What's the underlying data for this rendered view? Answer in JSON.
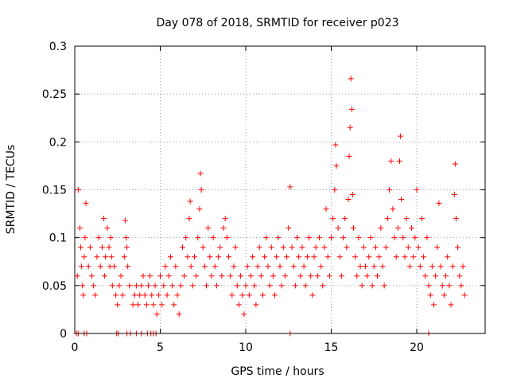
{
  "chart_data": {
    "type": "scatter",
    "title": "Day 078 of 2018, SRMTID for receiver p023",
    "xlabel": "GPS time / hours",
    "ylabel": "SRMTID / TECUs",
    "xlim": [
      0,
      24
    ],
    "ylim": [
      0,
      0.3
    ],
    "xticks": [
      0,
      5,
      10,
      15,
      20
    ],
    "yticks": [
      0,
      0.05,
      0.1,
      0.15,
      0.2,
      0.25,
      0.3
    ],
    "xtick_labels": [
      "0",
      "5",
      "10",
      "15",
      "20"
    ],
    "ytick_labels": [
      "0",
      "0.05",
      "0.1",
      "0.15",
      "0.2",
      "0.25",
      "0.3"
    ],
    "grid": true,
    "marker": "+",
    "series_color": "#ff0000",
    "series": [
      {
        "name": "SRMTID",
        "points": [
          [
            0.15,
            0.06
          ],
          [
            0.2,
            0.15
          ],
          [
            0.3,
            0.11
          ],
          [
            0.35,
            0.09
          ],
          [
            0.4,
            0.07
          ],
          [
            0.45,
            0.05
          ],
          [
            0.5,
            0.04
          ],
          [
            0.55,
            0.08
          ],
          [
            0.6,
            0.1
          ],
          [
            0.65,
            0.136
          ],
          [
            0.8,
            0.07
          ],
          [
            0.9,
            0.09
          ],
          [
            1.0,
            0.06
          ],
          [
            1.1,
            0.05
          ],
          [
            1.2,
            0.04
          ],
          [
            1.3,
            0.08
          ],
          [
            1.4,
            0.1
          ],
          [
            1.5,
            0.07
          ],
          [
            1.6,
            0.09
          ],
          [
            1.7,
            0.12
          ],
          [
            1.75,
            0.06
          ],
          [
            1.8,
            0.08
          ],
          [
            1.9,
            0.11
          ],
          [
            2.0,
            0.09
          ],
          [
            2.05,
            0.07
          ],
          [
            2.1,
            0.1
          ],
          [
            2.15,
            0.08
          ],
          [
            2.2,
            0.05
          ],
          [
            2.3,
            0.07
          ],
          [
            2.4,
            0.04
          ],
          [
            2.5,
            0.03
          ],
          [
            2.6,
            0.05
          ],
          [
            2.7,
            0.06
          ],
          [
            2.8,
            0.04
          ],
          [
            2.9,
            0.08
          ],
          [
            2.95,
            0.118
          ],
          [
            3.0,
            0.1
          ],
          [
            3.05,
            0.09
          ],
          [
            3.1,
            0.07
          ],
          [
            3.2,
            0.05
          ],
          [
            3.4,
            0.03
          ],
          [
            3.5,
            0.04
          ],
          [
            3.6,
            0.05
          ],
          [
            3.7,
            0.03
          ],
          [
            3.8,
            0.04
          ],
          [
            3.9,
            0.05
          ],
          [
            4.0,
            0.06
          ],
          [
            4.1,
            0.04
          ],
          [
            4.2,
            0.03
          ],
          [
            4.3,
            0.05
          ],
          [
            4.4,
            0.06
          ],
          [
            4.5,
            0.04
          ],
          [
            4.6,
            0.03
          ],
          [
            4.7,
            0.05
          ],
          [
            4.8,
            0.02
          ],
          [
            4.9,
            0.04
          ],
          [
            5.0,
            0.06
          ],
          [
            5.1,
            0.03
          ],
          [
            5.2,
            0.05
          ],
          [
            5.3,
            0.07
          ],
          [
            5.4,
            0.04
          ],
          [
            5.5,
            0.06
          ],
          [
            5.6,
            0.08
          ],
          [
            5.7,
            0.05
          ],
          [
            5.8,
            0.03
          ],
          [
            5.9,
            0.07
          ],
          [
            6.0,
            0.04
          ],
          [
            6.1,
            0.02
          ],
          [
            6.2,
            0.05
          ],
          [
            6.3,
            0.09
          ],
          [
            6.4,
            0.06
          ],
          [
            6.5,
            0.1
          ],
          [
            6.6,
            0.08
          ],
          [
            6.7,
            0.12
          ],
          [
            6.75,
            0.138
          ],
          [
            6.8,
            0.07
          ],
          [
            6.9,
            0.05
          ],
          [
            7.0,
            0.08
          ],
          [
            7.1,
            0.06
          ],
          [
            7.2,
            0.1
          ],
          [
            7.3,
            0.13
          ],
          [
            7.35,
            0.167
          ],
          [
            7.4,
            0.15
          ],
          [
            7.5,
            0.09
          ],
          [
            7.6,
            0.07
          ],
          [
            7.7,
            0.05
          ],
          [
            7.8,
            0.11
          ],
          [
            7.9,
            0.08
          ],
          [
            8.0,
            0.06
          ],
          [
            8.1,
            0.1
          ],
          [
            8.2,
            0.07
          ],
          [
            8.3,
            0.05
          ],
          [
            8.4,
            0.08
          ],
          [
            8.5,
            0.09
          ],
          [
            8.6,
            0.06
          ],
          [
            8.7,
            0.11
          ],
          [
            8.8,
            0.12
          ],
          [
            8.9,
            0.1
          ],
          [
            9.0,
            0.08
          ],
          [
            9.1,
            0.06
          ],
          [
            9.2,
            0.04
          ],
          [
            9.3,
            0.07
          ],
          [
            9.4,
            0.09
          ],
          [
            9.5,
            0.05
          ],
          [
            9.6,
            0.03
          ],
          [
            9.7,
            0.06
          ],
          [
            9.8,
            0.04
          ],
          [
            9.9,
            0.02
          ],
          [
            10.0,
            0.05
          ],
          [
            10.1,
            0.07
          ],
          [
            10.2,
            0.04
          ],
          [
            10.3,
            0.06
          ],
          [
            10.4,
            0.08
          ],
          [
            10.5,
            0.05
          ],
          [
            10.6,
            0.03
          ],
          [
            10.7,
            0.07
          ],
          [
            10.8,
            0.09
          ],
          [
            10.9,
            0.06
          ],
          [
            11.0,
            0.04
          ],
          [
            11.1,
            0.08
          ],
          [
            11.2,
            0.1
          ],
          [
            11.3,
            0.07
          ],
          [
            11.4,
            0.05
          ],
          [
            11.5,
            0.09
          ],
          [
            11.6,
            0.06
          ],
          [
            11.7,
            0.04
          ],
          [
            11.8,
            0.08
          ],
          [
            11.9,
            0.1
          ],
          [
            12.0,
            0.07
          ],
          [
            12.1,
            0.05
          ],
          [
            12.2,
            0.09
          ],
          [
            12.3,
            0.06
          ],
          [
            12.4,
            0.08
          ],
          [
            12.5,
            0.11
          ],
          [
            12.6,
            0.153
          ],
          [
            12.7,
            0.09
          ],
          [
            12.8,
            0.07
          ],
          [
            12.9,
            0.05
          ],
          [
            13.0,
            0.1
          ],
          [
            13.1,
            0.08
          ],
          [
            13.2,
            0.06
          ],
          [
            13.3,
            0.09
          ],
          [
            13.4,
            0.07
          ],
          [
            13.5,
            0.05
          ],
          [
            13.6,
            0.08
          ],
          [
            13.7,
            0.1
          ],
          [
            13.8,
            0.06
          ],
          [
            13.9,
            0.04
          ],
          [
            14.0,
            0.08
          ],
          [
            14.1,
            0.09
          ],
          [
            14.2,
            0.06
          ],
          [
            14.3,
            0.1
          ],
          [
            14.4,
            0.07
          ],
          [
            14.5,
            0.05
          ],
          [
            14.6,
            0.09
          ],
          [
            14.7,
            0.13
          ],
          [
            14.8,
            0.08
          ],
          [
            14.9,
            0.06
          ],
          [
            15.0,
            0.1
          ],
          [
            15.1,
            0.12
          ],
          [
            15.2,
            0.15
          ],
          [
            15.25,
            0.197
          ],
          [
            15.3,
            0.175
          ],
          [
            15.4,
            0.11
          ],
          [
            15.5,
            0.08
          ],
          [
            15.6,
            0.06
          ],
          [
            15.7,
            0.1
          ],
          [
            15.8,
            0.12
          ],
          [
            15.9,
            0.09
          ],
          [
            16.0,
            0.14
          ],
          [
            16.05,
            0.185
          ],
          [
            16.1,
            0.215
          ],
          [
            16.15,
            0.266
          ],
          [
            16.2,
            0.234
          ],
          [
            16.25,
            0.145
          ],
          [
            16.3,
            0.11
          ],
          [
            16.4,
            0.08
          ],
          [
            16.5,
            0.06
          ],
          [
            16.6,
            0.1
          ],
          [
            16.7,
            0.07
          ],
          [
            16.8,
            0.05
          ],
          [
            16.9,
            0.09
          ],
          [
            17.0,
            0.07
          ],
          [
            17.1,
            0.06
          ],
          [
            17.2,
            0.08
          ],
          [
            17.3,
            0.1
          ],
          [
            17.4,
            0.05
          ],
          [
            17.5,
            0.07
          ],
          [
            17.6,
            0.09
          ],
          [
            17.7,
            0.06
          ],
          [
            17.8,
            0.08
          ],
          [
            17.9,
            0.11
          ],
          [
            18.0,
            0.07
          ],
          [
            18.1,
            0.05
          ],
          [
            18.2,
            0.09
          ],
          [
            18.3,
            0.12
          ],
          [
            18.4,
            0.15
          ],
          [
            18.5,
            0.18
          ],
          [
            18.6,
            0.13
          ],
          [
            18.7,
            0.1
          ],
          [
            18.8,
            0.08
          ],
          [
            18.9,
            0.11
          ],
          [
            19.0,
            0.18
          ],
          [
            19.05,
            0.206
          ],
          [
            19.1,
            0.14
          ],
          [
            19.2,
            0.1
          ],
          [
            19.3,
            0.08
          ],
          [
            19.4,
            0.12
          ],
          [
            19.5,
            0.09
          ],
          [
            19.6,
            0.07
          ],
          [
            19.7,
            0.11
          ],
          [
            19.8,
            0.08
          ],
          [
            19.9,
            0.1
          ],
          [
            20.0,
            0.15
          ],
          [
            20.1,
            0.09
          ],
          [
            20.2,
            0.07
          ],
          [
            20.3,
            0.12
          ],
          [
            20.4,
            0.08
          ],
          [
            20.5,
            0.06
          ],
          [
            20.6,
            0.1
          ],
          [
            20.7,
            0.05
          ],
          [
            20.8,
            0.04
          ],
          [
            20.9,
            0.07
          ],
          [
            21.0,
            0.03
          ],
          [
            21.1,
            0.06
          ],
          [
            21.2,
            0.09
          ],
          [
            21.3,
            0.136
          ],
          [
            21.4,
            0.07
          ],
          [
            21.5,
            0.05
          ],
          [
            21.6,
            0.04
          ],
          [
            21.7,
            0.06
          ],
          [
            21.8,
            0.08
          ],
          [
            21.9,
            0.05
          ],
          [
            22.0,
            0.03
          ],
          [
            22.1,
            0.07
          ],
          [
            22.2,
            0.145
          ],
          [
            22.25,
            0.177
          ],
          [
            22.3,
            0.12
          ],
          [
            22.4,
            0.09
          ],
          [
            22.5,
            0.06
          ],
          [
            22.6,
            0.05
          ],
          [
            22.7,
            0.07
          ],
          [
            22.8,
            0.04
          ],
          [
            0.1,
            0
          ],
          [
            0.2,
            0
          ],
          [
            0.55,
            0
          ],
          [
            0.7,
            0
          ],
          [
            2.45,
            0
          ],
          [
            2.55,
            0
          ],
          [
            3.05,
            0
          ],
          [
            3.25,
            0
          ],
          [
            3.6,
            0
          ],
          [
            3.9,
            0
          ],
          [
            4.25,
            0
          ],
          [
            4.45,
            0
          ],
          [
            4.6,
            0
          ],
          [
            4.75,
            0
          ],
          [
            12.6,
            0
          ],
          [
            20.7,
            0
          ]
        ]
      }
    ]
  }
}
